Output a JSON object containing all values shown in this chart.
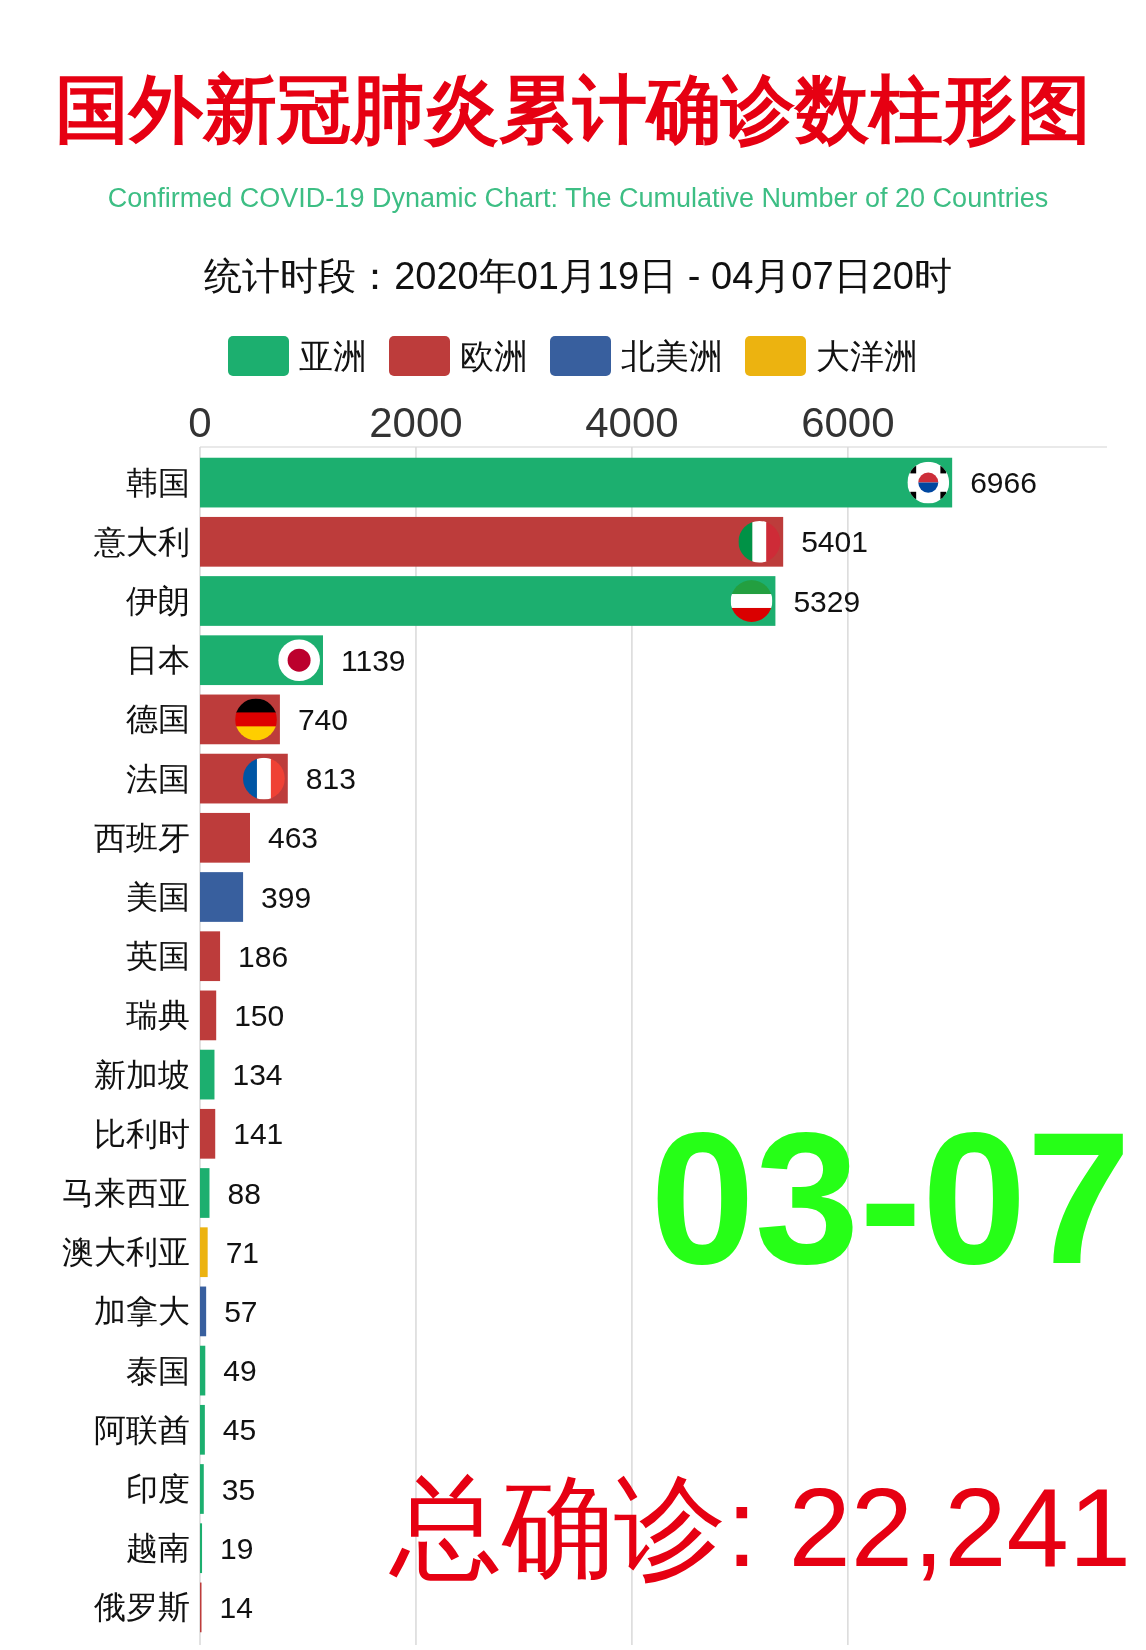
{
  "chart_data": {
    "type": "bar",
    "orientation": "horizontal",
    "stacked": true,
    "title": "国外新冠肺炎累计确诊数柱形图",
    "subtitle": "Confirmed COVID-19 Dynamic Chart: The Cumulative Number of 20 Countries",
    "annotations": [
      "统计时段：2020年01月19日 - 04月07日20时",
      "03-07",
      "总确诊: 22,241"
    ],
    "categories": [
      "韩国",
      "意大利",
      "伊朗",
      "日本",
      "德国",
      "法国",
      "西班牙",
      "美国",
      "英国",
      "瑞典",
      "新加坡",
      "比利时",
      "马来西亚",
      "澳大利亚",
      "加拿大",
      "泰国",
      "阿联酋",
      "印度",
      "越南",
      "俄罗斯"
    ],
    "series": [
      {
        "name": "亚洲",
        "color": "#1caf6f",
        "values": [
          6966,
          null,
          5329,
          1139,
          null,
          null,
          null,
          null,
          null,
          null,
          134,
          null,
          88,
          null,
          null,
          49,
          45,
          35,
          19,
          null
        ]
      },
      {
        "name": "欧洲",
        "color": "#bd3c3b",
        "values": [
          null,
          5401,
          null,
          null,
          740,
          813,
          463,
          null,
          186,
          150,
          null,
          141,
          null,
          null,
          null,
          null,
          null,
          null,
          null,
          14
        ]
      },
      {
        "name": "北美洲",
        "color": "#385f9e",
        "values": [
          null,
          null,
          null,
          null,
          null,
          null,
          null,
          399,
          null,
          null,
          null,
          null,
          null,
          null,
          57,
          null,
          null,
          null,
          null,
          null
        ]
      },
      {
        "name": "大洋洲",
        "color": "#ecb310",
        "values": [
          null,
          null,
          null,
          null,
          null,
          null,
          null,
          null,
          null,
          null,
          null,
          null,
          null,
          71,
          null,
          null,
          null,
          null,
          null,
          null
        ]
      }
    ],
    "xlim": [
      0,
      8400
    ],
    "xticks": [
      0,
      2000,
      4000,
      6000
    ],
    "grid": "x",
    "legend": "top",
    "data_labels": true
  }
}
